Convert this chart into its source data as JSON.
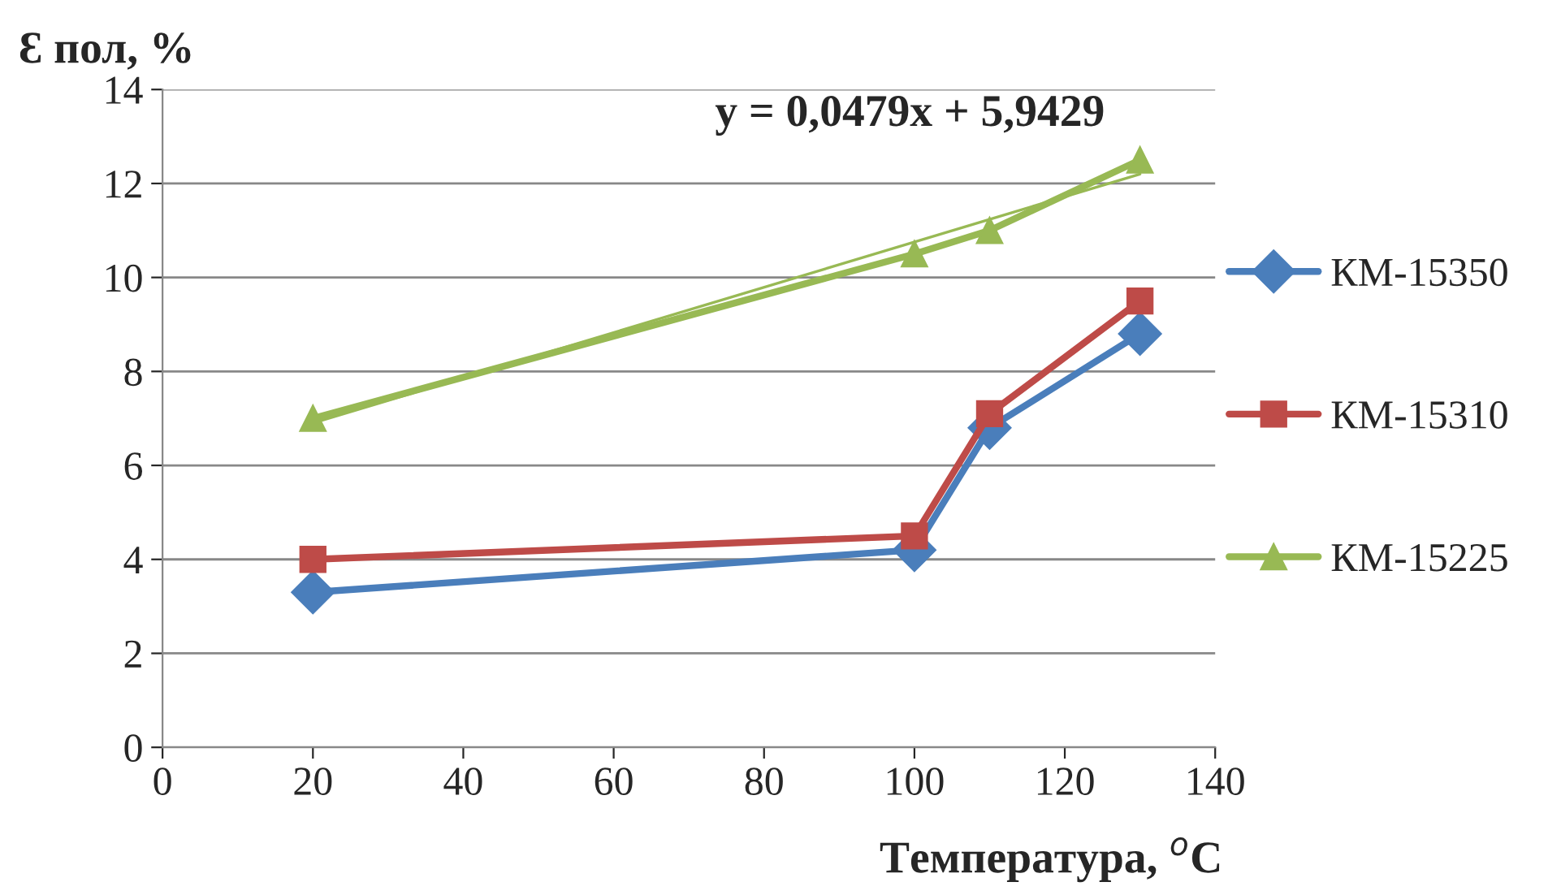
{
  "chart_data": {
    "type": "line",
    "xlabel": "Температура, $^{o}$С",
    "ylabel": "Ɛ пол, %",
    "x": [
      20,
      100,
      110,
      130
    ],
    "series": [
      {
        "name": "КМ-15350",
        "color": "#4a7ebb",
        "marker": "diamond",
        "values": [
          3.3,
          4.2,
          6.8,
          8.8
        ]
      },
      {
        "name": "КМ-15310",
        "color": "#be4b48",
        "marker": "square",
        "values": [
          4.0,
          4.5,
          7.1,
          9.5
        ]
      },
      {
        "name": "КМ-15225",
        "color": "#98b954",
        "marker": "triangle",
        "values": [
          7.0,
          10.5,
          11.0,
          12.5
        ]
      },
      {
        "type": "line",
        "color": "#98b954",
        "marker": "none",
        "x": [
          20,
          130
        ],
        "values": [
          6.9,
          12.2
        ]
      }
    ],
    "annotations": [
      "y = 0,0479x + 5,9429"
    ],
    "xlim": [
      0,
      140
    ],
    "xticks": [
      0,
      20,
      40,
      60,
      80,
      100,
      120,
      140
    ],
    "ylim": [
      0,
      14
    ],
    "yticks": [
      0,
      2,
      4,
      6,
      8,
      10,
      12,
      14
    ],
    "grid": "y",
    "legend": "right",
    "line_style": "solid"
  }
}
